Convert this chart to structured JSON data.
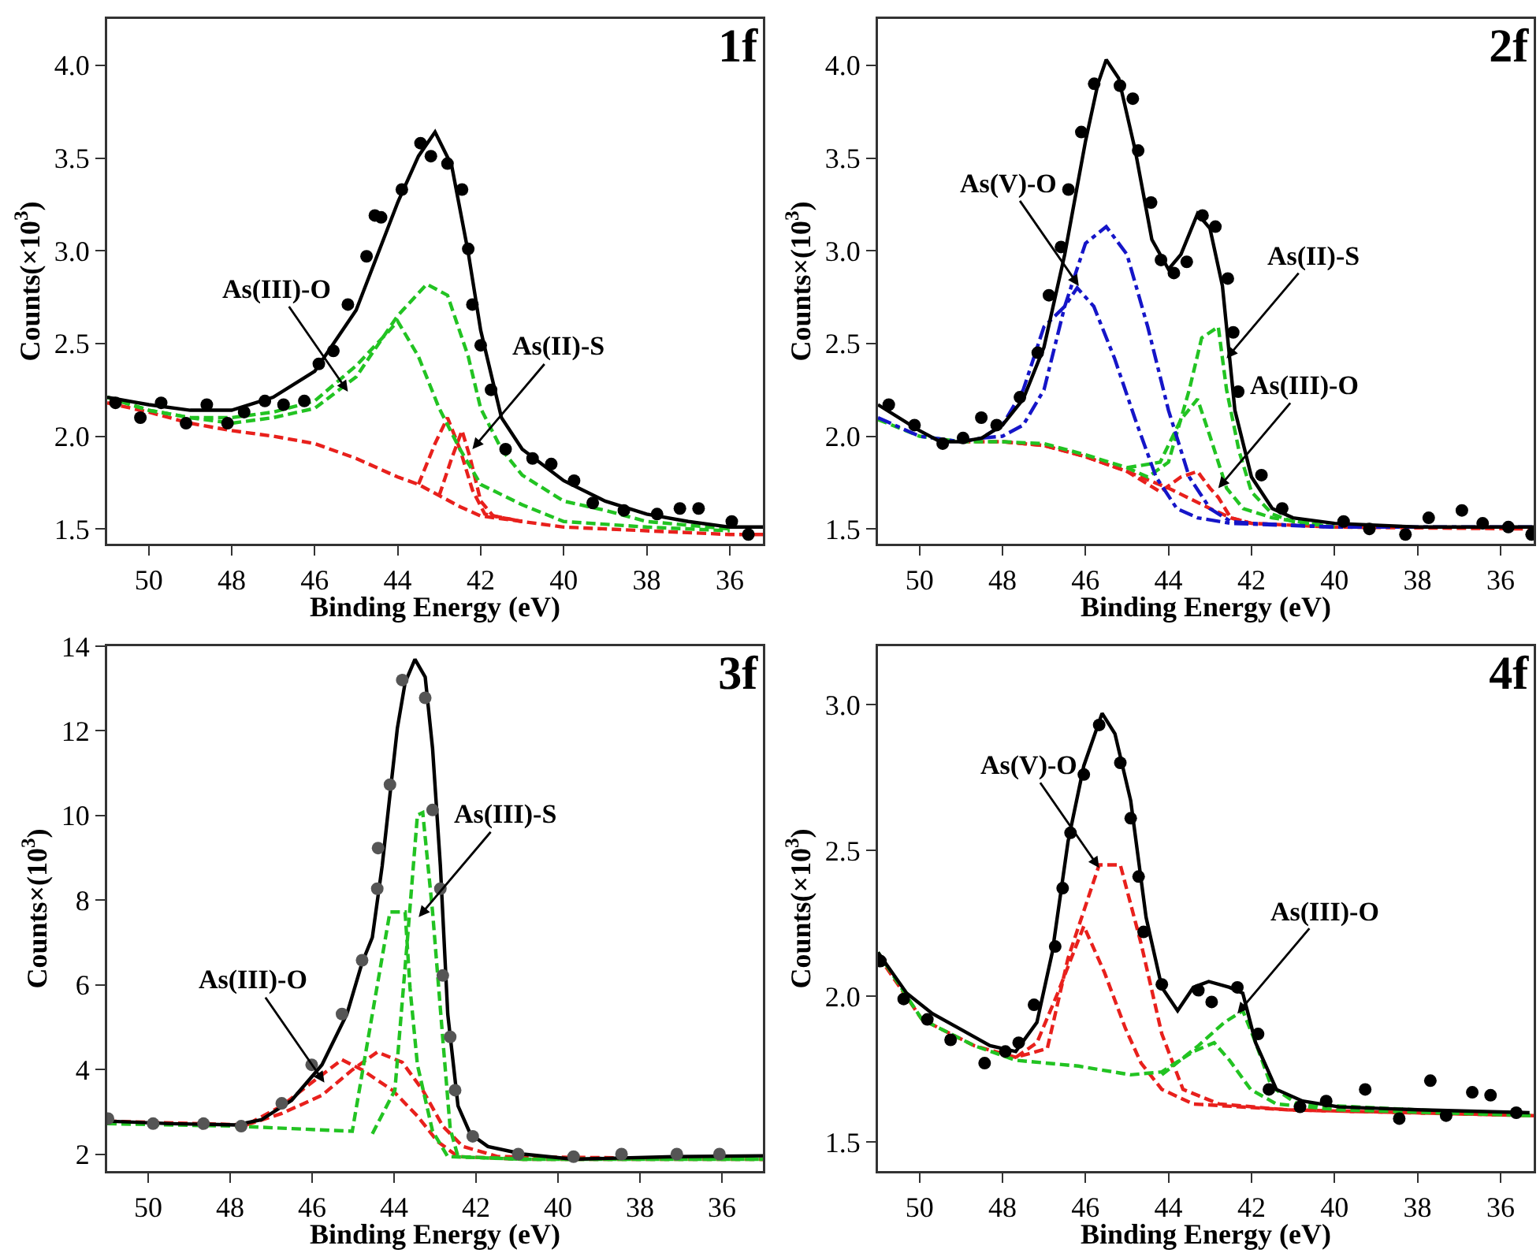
{
  "chart_data": [
    {
      "type": "line",
      "title": "1f",
      "xlabel": "Binding Energy (eV)",
      "ylabel": "Counts(×10$^{3}$)",
      "xlim": [
        51,
        35.2
      ],
      "xticks": [
        50,
        48,
        46,
        44,
        42,
        40,
        38,
        36
      ],
      "ylim": [
        1.42,
        4.25
      ],
      "yticks": [
        {
          "value": 1.5,
          "label": "1.5"
        },
        {
          "value": 2,
          "label": "2.0"
        },
        {
          "value": 2.5,
          "label": "2.5"
        },
        {
          "value": 3,
          "label": "3.0"
        },
        {
          "value": 3.5,
          "label": "3.5"
        },
        {
          "value": 4,
          "label": "4.0"
        }
      ],
      "annotations": [
        {
          "text": "As(III)-O",
          "x": 45.2,
          "y": 2.24
        },
        {
          "text": "As(II)-S",
          "x": 42.2,
          "y": 1.93
        }
      ],
      "series": [
        {
          "type": "line",
          "color": "#e8201c",
          "line_style": "dashed",
          "x": [
            51,
            50,
            49,
            48,
            47,
            46,
            45,
            44,
            43.5,
            43,
            42.5,
            42,
            41,
            40,
            38,
            36,
            35.2
          ],
          "values": [
            2.18,
            2.13,
            2.07,
            2.03,
            2.0,
            1.96,
            1.88,
            1.78,
            1.74,
            1.68,
            1.62,
            1.57,
            1.54,
            1.51,
            1.49,
            1.47,
            1.47
          ]
        },
        {
          "type": "line",
          "color": "#e8201c",
          "line_style": "dashed",
          "x": [
            43.5,
            43.1,
            42.8,
            42.5,
            42.2,
            41.9,
            41
          ],
          "values": [
            1.74,
            1.96,
            2.1,
            1.93,
            1.71,
            1.58,
            1.54
          ]
        },
        {
          "type": "line",
          "color": "#e8201c",
          "line_style": "dashed",
          "x": [
            43,
            42.7,
            42.45,
            42.25,
            42,
            41.7,
            41
          ],
          "values": [
            1.68,
            1.88,
            2.03,
            1.88,
            1.65,
            1.57,
            1.54
          ]
        },
        {
          "type": "line",
          "color": "#22c322",
          "line_style": "dashed",
          "x": [
            51,
            50,
            49,
            48,
            47,
            46,
            45,
            44.2,
            44,
            43.5,
            43,
            42.5,
            42,
            41,
            40,
            38,
            36
          ],
          "values": [
            2.21,
            2.14,
            2.1,
            2.1,
            2.13,
            2.19,
            2.38,
            2.57,
            2.62,
            2.43,
            2.15,
            1.93,
            1.74,
            1.63,
            1.54,
            1.51,
            1.49
          ]
        },
        {
          "type": "line",
          "color": "#22c322",
          "line_style": "dashed",
          "x": [
            51,
            50,
            49,
            48,
            47,
            46,
            45,
            44,
            43.3,
            42.8,
            42.3,
            42,
            41.5,
            41,
            40,
            39,
            38,
            36
          ],
          "values": [
            2.21,
            2.14,
            2.1,
            2.07,
            2.1,
            2.15,
            2.32,
            2.65,
            2.82,
            2.76,
            2.43,
            2.15,
            1.93,
            1.79,
            1.65,
            1.6,
            1.54,
            1.5
          ]
        },
        {
          "type": "line",
          "color": "#000000",
          "line_style": "solid",
          "x": [
            51,
            50,
            49,
            48,
            47,
            46,
            45,
            44,
            43.5,
            43.1,
            42.7,
            42.3,
            42,
            41.5,
            41,
            40,
            39,
            38,
            37,
            36,
            35.2
          ],
          "values": [
            2.21,
            2.17,
            2.14,
            2.14,
            2.21,
            2.35,
            2.68,
            3.26,
            3.51,
            3.64,
            3.46,
            2.99,
            2.57,
            2.1,
            1.93,
            1.76,
            1.65,
            1.58,
            1.54,
            1.51,
            1.51
          ]
        },
        {
          "type": "scatter",
          "color": "#000000",
          "marker": "circle",
          "x": [
            50.8,
            50.2,
            49.7,
            49.1,
            48.6,
            48.1,
            47.7,
            47.2,
            46.75,
            46.25,
            45.9,
            45.55,
            45.2,
            44.75,
            44.55,
            44.4,
            43.9,
            43.45,
            43.2,
            42.8,
            42.45,
            42.3,
            42.2,
            42.0,
            41.75,
            41.4,
            40.75,
            40.3,
            39.75,
            39.3,
            38.55,
            37.75,
            37.2,
            36.75,
            35.95,
            35.55
          ],
          "values": [
            2.18,
            2.1,
            2.18,
            2.07,
            2.17,
            2.07,
            2.13,
            2.19,
            2.17,
            2.19,
            2.39,
            2.46,
            2.71,
            2.97,
            3.19,
            3.18,
            3.33,
            3.58,
            3.51,
            3.47,
            3.33,
            3.01,
            2.71,
            2.49,
            2.25,
            1.93,
            1.88,
            1.85,
            1.76,
            1.64,
            1.6,
            1.58,
            1.61,
            1.61,
            1.54,
            1.47
          ]
        }
      ]
    },
    {
      "type": "line",
      "title": "2f",
      "xlabel": "Binding Energy (eV)",
      "ylabel": "Counts×(10$^{3}$)",
      "xlim": [
        51,
        35.2
      ],
      "xticks": [
        50,
        48,
        46,
        44,
        42,
        40,
        38,
        36
      ],
      "ylim": [
        1.42,
        4.25
      ],
      "yticks": [
        {
          "value": 1.5,
          "label": "1.5"
        },
        {
          "value": 2,
          "label": "2.0"
        },
        {
          "value": 2.5,
          "label": "2.5"
        },
        {
          "value": 3,
          "label": "3.0"
        },
        {
          "value": 3.5,
          "label": "3.5"
        },
        {
          "value": 4,
          "label": "4.0"
        }
      ],
      "annotations": [
        {
          "text": "As(V)-O",
          "x": 46.16,
          "y": 2.81
        },
        {
          "text": "As(II)-S",
          "x": 42.6,
          "y": 2.42
        },
        {
          "text": "As(III)-O",
          "x": 42.8,
          "y": 1.72
        }
      ],
      "series": [
        {
          "type": "line",
          "color": "#e8201c",
          "line_style": "dashed",
          "x": [
            49,
            48,
            47,
            46,
            45,
            44,
            43,
            42.5,
            42,
            40,
            35.2
          ],
          "values": [
            1.97,
            1.97,
            1.95,
            1.89,
            1.81,
            1.72,
            1.61,
            1.56,
            1.53,
            1.51,
            1.5
          ]
        },
        {
          "type": "line",
          "color": "#e8201c",
          "line_style": "dashed",
          "x": [
            48,
            47,
            46,
            45,
            44.2,
            43.7,
            43.3,
            43,
            42.8,
            42.5,
            42
          ],
          "values": [
            1.97,
            1.95,
            1.89,
            1.81,
            1.7,
            1.78,
            1.81,
            1.72,
            1.67,
            1.56,
            1.53
          ]
        },
        {
          "type": "line",
          "color": "#22c322",
          "line_style": "dashed",
          "x": [
            51,
            50,
            49,
            48,
            47,
            46,
            45,
            44.5,
            44,
            43.5,
            43.2,
            42.8,
            42.6,
            42.3,
            42,
            41.5,
            41,
            40
          ],
          "values": [
            2.09,
            2.0,
            1.97,
            1.97,
            1.96,
            1.9,
            1.83,
            1.78,
            1.86,
            2.25,
            2.53,
            2.59,
            2.25,
            1.92,
            1.7,
            1.58,
            1.54,
            1.51
          ]
        },
        {
          "type": "line",
          "color": "#22c322",
          "line_style": "dashed",
          "x": [
            45,
            44.2,
            43.7,
            43.3,
            43,
            42.6,
            42.2,
            41.5,
            40
          ],
          "values": [
            1.83,
            1.86,
            2.09,
            2.2,
            2.0,
            1.72,
            1.61,
            1.56,
            1.51
          ]
        },
        {
          "type": "line",
          "color": "#1515c8",
          "line_style": "dashdot",
          "x": [
            51,
            50,
            49,
            48.5,
            48,
            47.5,
            47,
            46.5,
            46.2,
            45.8,
            45.3,
            44.8,
            44.3,
            43.8,
            43.3,
            42.5,
            40,
            35.2
          ],
          "values": [
            2.1,
            2.0,
            1.97,
            1.99,
            2.06,
            2.25,
            2.59,
            2.7,
            2.8,
            2.7,
            2.42,
            2.09,
            1.78,
            1.61,
            1.56,
            1.53,
            1.51,
            1.51
          ]
        },
        {
          "type": "line",
          "color": "#1515c8",
          "line_style": "dashdot",
          "x": [
            48.5,
            48,
            47.5,
            47,
            46.5,
            46,
            45.5,
            45,
            44.5,
            44,
            43.5,
            43,
            42.5,
            42,
            40
          ],
          "values": [
            1.99,
            2.0,
            2.06,
            2.25,
            2.7,
            3.04,
            3.13,
            2.98,
            2.59,
            2.14,
            1.78,
            1.61,
            1.54,
            1.53,
            1.51
          ]
        },
        {
          "type": "line",
          "color": "#000000",
          "line_style": "solid",
          "x": [
            51,
            50,
            49.5,
            49,
            48.5,
            48,
            47.5,
            47,
            46.5,
            46,
            45.7,
            45.5,
            45.2,
            44.8,
            44.4,
            44,
            43.7,
            43.3,
            43,
            42.7,
            42.4,
            42,
            41.5,
            41,
            40,
            38,
            35.2
          ],
          "values": [
            2.17,
            2.03,
            1.97,
            1.97,
            1.99,
            2.06,
            2.2,
            2.48,
            2.98,
            3.59,
            3.9,
            4.03,
            3.93,
            3.54,
            3.06,
            2.9,
            2.98,
            3.2,
            3.12,
            2.81,
            2.14,
            1.78,
            1.61,
            1.56,
            1.53,
            1.51,
            1.51
          ]
        },
        {
          "type": "scatter",
          "color": "#000000",
          "marker": "circle",
          "x": [
            50.74,
            50.12,
            49.44,
            48.95,
            48.51,
            48.14,
            47.58,
            47.15,
            46.88,
            46.59,
            46.41,
            46.1,
            45.79,
            45.17,
            44.86,
            44.73,
            44.42,
            44.18,
            43.87,
            43.56,
            43.18,
            42.87,
            42.57,
            42.44,
            42.32,
            41.76,
            41.26,
            39.78,
            39.16,
            38.29,
            37.73,
            36.93,
            36.43,
            35.81,
            35.25
          ],
          "values": [
            2.17,
            2.06,
            1.96,
            1.99,
            2.1,
            2.06,
            2.21,
            2.45,
            2.76,
            3.02,
            3.33,
            3.64,
            3.9,
            3.89,
            3.82,
            3.54,
            3.26,
            2.95,
            2.88,
            2.94,
            3.19,
            3.13,
            2.85,
            2.56,
            2.24,
            1.79,
            1.61,
            1.54,
            1.5,
            1.47,
            1.56,
            1.6,
            1.53,
            1.51,
            1.47
          ]
        }
      ]
    },
    {
      "type": "line",
      "title": "3f",
      "xlabel": "Binding Energy (eV)",
      "ylabel": "Counts×(10$^{3}$)",
      "xlim": [
        51,
        35
      ],
      "xticks": [
        50,
        48,
        46,
        44,
        42,
        40,
        38,
        36
      ],
      "ylim": [
        1.6,
        14
      ],
      "yticks": [
        2,
        4,
        6,
        8,
        10,
        12,
        14
      ],
      "annotations": [
        {
          "text": "As(III)-O",
          "x": 45.7,
          "y": 3.69
        },
        {
          "text": "As(III)-S",
          "x": 43.4,
          "y": 7.6
        }
      ],
      "series": [
        {
          "type": "line",
          "color": "#e8201c",
          "line_style": "dashed",
          "x": [
            51,
            47.6,
            46.74,
            46.01,
            45.27,
            44.78,
            44.04,
            43.43,
            42.94,
            42.44,
            40.85,
            35
          ],
          "values": [
            2.78,
            2.69,
            3.14,
            3.69,
            4.23,
            3.99,
            3.51,
            2.9,
            2.3,
            1.94,
            1.88,
            1.88
          ]
        },
        {
          "type": "line",
          "color": "#e8201c",
          "line_style": "dashed",
          "x": [
            47.6,
            46.74,
            45.76,
            45.02,
            44.41,
            43.8,
            43.3,
            42.81,
            42.32,
            41.46,
            35
          ],
          "values": [
            2.69,
            2.96,
            3.39,
            3.99,
            4.41,
            4.17,
            3.51,
            2.66,
            2.18,
            1.94,
            1.88
          ]
        },
        {
          "type": "line",
          "color": "#22c322",
          "line_style": "dashed",
          "x": [
            51,
            47.85,
            45.02,
            44.53,
            44.1,
            43.73,
            43.61,
            43.43,
            43.06,
            42.69,
            40.85,
            35
          ],
          "values": [
            2.72,
            2.66,
            2.54,
            5.31,
            7.72,
            7.72,
            5.92,
            4.11,
            2.54,
            1.94,
            1.88,
            1.88
          ]
        },
        {
          "type": "line",
          "color": "#22c322",
          "line_style": "dashed",
          "x": [
            44.53,
            43.98,
            43.67,
            43.43,
            43.3,
            43.06,
            42.81,
            42.63,
            42.44,
            40.85,
            35
          ],
          "values": [
            2.48,
            3.51,
            7.12,
            10.01,
            10.07,
            7.72,
            4.71,
            2.6,
            1.94,
            1.88,
            1.88
          ]
        },
        {
          "type": "line",
          "color": "#000000",
          "line_style": "solid",
          "x": [
            51,
            49.45,
            47.85,
            47.24,
            46.5,
            45.76,
            45.15,
            44.78,
            44.53,
            44.29,
            44.1,
            43.92,
            43.73,
            43.49,
            43.24,
            43.06,
            42.87,
            42.69,
            42.44,
            42.14,
            41.71,
            40.85,
            39.62,
            37.16,
            35
          ],
          "values": [
            2.78,
            2.72,
            2.69,
            2.81,
            3.27,
            4.11,
            5.31,
            6.52,
            7.12,
            8.81,
            10.49,
            12.06,
            13.14,
            13.69,
            13.27,
            11.58,
            8.81,
            5.31,
            3.14,
            2.48,
            2.18,
            2.0,
            1.88,
            1.94,
            1.96
          ]
        },
        {
          "type": "scatter",
          "color": "#555555",
          "marker": "circle",
          "x": [
            50.98,
            49.88,
            48.65,
            47.73,
            46.74,
            46.01,
            45.27,
            44.78,
            44.41,
            44.39,
            44.1,
            43.8,
            43.24,
            43.06,
            42.87,
            42.81,
            42.63,
            42.51,
            42.08,
            40.97,
            39.62,
            38.45,
            37.1,
            36.06
          ],
          "values": [
            2.84,
            2.72,
            2.72,
            2.66,
            3.2,
            4.11,
            5.31,
            6.58,
            8.27,
            9.23,
            10.73,
            13.2,
            12.78,
            10.13,
            8.27,
            6.22,
            4.77,
            3.51,
            2.42,
            2.0,
            1.94,
            2.0,
            2.0,
            2.0
          ]
        }
      ]
    },
    {
      "type": "line",
      "title": "4f",
      "xlabel": "Binding Energy (eV)",
      "ylabel": "Counts(×10$^{3}$)",
      "xlim": [
        51,
        35.2
      ],
      "xticks": [
        50,
        48,
        46,
        44,
        42,
        40,
        38,
        36
      ],
      "ylim": [
        1.4,
        3.2
      ],
      "yticks": [
        {
          "value": 1.5,
          "label": "1.5"
        },
        {
          "value": 2,
          "label": "2.0"
        },
        {
          "value": 2.5,
          "label": "2.5"
        },
        {
          "value": 3,
          "label": "3.0"
        }
      ],
      "annotations": [
        {
          "text": "As(V)-O",
          "x": 45.67,
          "y": 2.44
        },
        {
          "text": "As(III)-O",
          "x": 42.34,
          "y": 1.94
        }
      ],
      "series": [
        {
          "type": "line",
          "color": "#e8201c",
          "line_style": "dashed",
          "x": [
            51,
            49.94,
            48.68,
            47.68,
            46.92,
            46.42,
            45.67,
            45.16,
            44.66,
            44.16,
            43.65,
            42.78,
            41.14,
            35.2
          ],
          "values": [
            2.14,
            1.92,
            1.83,
            1.79,
            1.82,
            2.13,
            2.45,
            2.45,
            2.18,
            1.87,
            1.68,
            1.63,
            1.61,
            1.59
          ]
        },
        {
          "type": "line",
          "color": "#e8201c",
          "line_style": "dashed",
          "x": [
            47.68,
            47.17,
            46.67,
            46.04,
            45.54,
            45.04,
            44.66,
            44.16,
            43.4,
            41.14,
            35.2
          ],
          "values": [
            1.79,
            1.84,
            2.01,
            2.24,
            2.08,
            1.89,
            1.77,
            1.68,
            1.63,
            1.61,
            1.59
          ]
        },
        {
          "type": "line",
          "color": "#22c322",
          "line_style": "dashed",
          "x": [
            51,
            49.94,
            48.68,
            47.68,
            46.17,
            44.91,
            44.16,
            43.4,
            42.9,
            42.53,
            42.02,
            41.4,
            39.89,
            35.2
          ],
          "values": [
            2.15,
            1.92,
            1.83,
            1.78,
            1.76,
            1.73,
            1.74,
            1.81,
            1.84,
            1.78,
            1.68,
            1.63,
            1.61,
            1.59
          ]
        },
        {
          "type": "line",
          "color": "#22c322",
          "line_style": "dashed",
          "x": [
            44.16,
            43.28,
            42.65,
            42.21,
            41.9,
            41.52,
            40.89,
            35.2
          ],
          "values": [
            1.73,
            1.83,
            1.91,
            1.95,
            1.84,
            1.69,
            1.63,
            1.59
          ]
        },
        {
          "type": "line",
          "color": "#000000",
          "line_style": "solid",
          "x": [
            51,
            50.31,
            49.69,
            48.93,
            48.3,
            47.68,
            47.17,
            46.8,
            46.42,
            46.04,
            45.6,
            45.29,
            44.91,
            44.54,
            44.16,
            43.78,
            43.4,
            43.03,
            42.53,
            42.21,
            41.9,
            41.4,
            40.77,
            39.89,
            38,
            35.3
          ],
          "values": [
            2.15,
            2.01,
            1.94,
            1.88,
            1.83,
            1.81,
            1.91,
            2.15,
            2.53,
            2.79,
            2.97,
            2.9,
            2.67,
            2.27,
            2.03,
            1.95,
            2.03,
            2.05,
            2.03,
            2.01,
            1.84,
            1.68,
            1.64,
            1.62,
            1.61,
            1.6
          ]
        },
        {
          "type": "scatter",
          "color": "#000000",
          "marker": "circle",
          "x": [
            50.94,
            50.38,
            49.81,
            49.25,
            48.43,
            47.93,
            47.61,
            47.24,
            46.73,
            46.55,
            46.36,
            46.04,
            45.67,
            45.16,
            44.91,
            44.72,
            44.6,
            44.16,
            43.28,
            42.96,
            42.34,
            41.84,
            41.58,
            40.83,
            40.2,
            39.26,
            38.44,
            37.69,
            37.31,
            36.68,
            36.24,
            35.62
          ],
          "values": [
            2.12,
            1.99,
            1.92,
            1.85,
            1.77,
            1.81,
            1.84,
            1.97,
            2.17,
            2.37,
            2.56,
            2.76,
            2.93,
            2.8,
            2.61,
            2.41,
            2.22,
            2.04,
            2.02,
            1.98,
            2.03,
            1.87,
            1.68,
            1.62,
            1.64,
            1.68,
            1.58,
            1.71,
            1.59,
            1.67,
            1.66,
            1.6
          ]
        }
      ]
    }
  ]
}
